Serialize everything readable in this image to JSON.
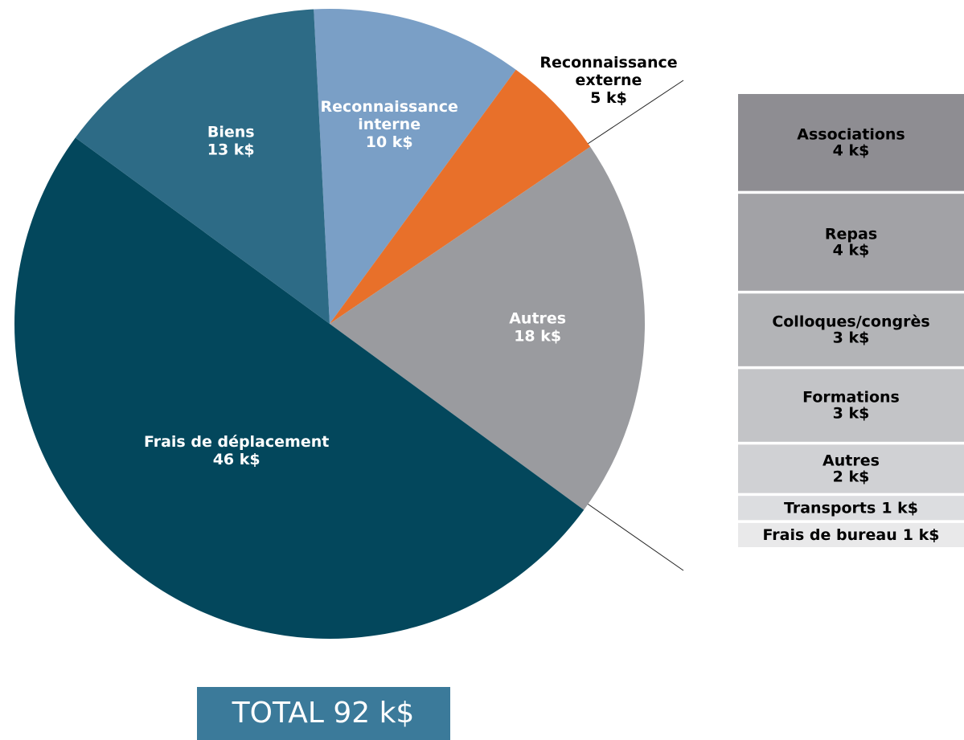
{
  "chart_data": {
    "type": "pie",
    "categories": [
      "Reconnaissance interne",
      "Reconnaissance externe",
      "Autres",
      "Frais de déplacement",
      "Biens"
    ],
    "values": [
      10,
      5,
      18,
      46,
      13
    ],
    "value_labels": [
      "10 k$",
      "5 k$",
      "18 k$",
      "46 k$",
      "13 k$"
    ],
    "colors": [
      "#7a9fc6",
      "#e8702a",
      "#9a9b9f",
      "#03475c",
      "#2d6b86"
    ],
    "total_label": "TOTAL 92 k$",
    "breakdown": {
      "categories": [
        "Associations",
        "Repas",
        "Colloques/congrès",
        "Formations",
        "Autres",
        "Transports",
        "Frais de bureau"
      ],
      "values": [
        4,
        4,
        3,
        3,
        2,
        1,
        1
      ],
      "value_labels": [
        "4 k$",
        "4 k$",
        "3 k$",
        "3 k$",
        "2 k$",
        "1 k$",
        "1 k$"
      ],
      "colors": [
        "#8e8d92",
        "#a2a2a6",
        "#b3b4b7",
        "#c3c4c7",
        "#d0d1d4",
        "#dcdde0",
        "#e9e9ea"
      ]
    }
  }
}
